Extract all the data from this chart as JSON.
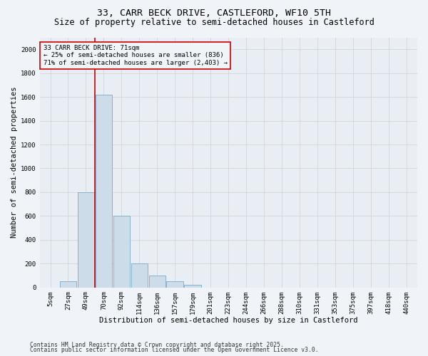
{
  "title_line1": "33, CARR BECK DRIVE, CASTLEFORD, WF10 5TH",
  "title_line2": "Size of property relative to semi-detached houses in Castleford",
  "xlabel": "Distribution of semi-detached houses by size in Castleford",
  "ylabel": "Number of semi-detached properties",
  "categories": [
    "5sqm",
    "27sqm",
    "49sqm",
    "70sqm",
    "92sqm",
    "114sqm",
    "136sqm",
    "157sqm",
    "179sqm",
    "201sqm",
    "223sqm",
    "244sqm",
    "266sqm",
    "288sqm",
    "310sqm",
    "331sqm",
    "353sqm",
    "375sqm",
    "397sqm",
    "418sqm",
    "440sqm"
  ],
  "bar_heights": [
    0,
    50,
    800,
    1620,
    600,
    200,
    100,
    55,
    20,
    0,
    0,
    0,
    0,
    0,
    0,
    0,
    0,
    0,
    0,
    0,
    0
  ],
  "bar_color": "#ccdce8",
  "bar_edgecolor": "#7aaac8",
  "red_line_color": "#cc0000",
  "red_line_bin": 3,
  "annotation_text": "33 CARR BECK DRIVE: 71sqm\n← 25% of semi-detached houses are smaller (836)\n71% of semi-detached houses are larger (2,403) →",
  "annotation_box_edgecolor": "#cc0000",
  "ylim": [
    0,
    2100
  ],
  "yticks": [
    0,
    200,
    400,
    600,
    800,
    1000,
    1200,
    1400,
    1600,
    1800,
    2000
  ],
  "grid_color": "#d0d0d0",
  "background_color": "#f0f4f8",
  "plot_bg_color": "#e8eef4",
  "footnote_line1": "Contains HM Land Registry data © Crown copyright and database right 2025.",
  "footnote_line2": "Contains public sector information licensed under the Open Government Licence v3.0.",
  "title_fontsize": 9.5,
  "subtitle_fontsize": 8.5,
  "axis_label_fontsize": 7.5,
  "tick_fontsize": 6.5,
  "annotation_fontsize": 6.5,
  "footnote_fontsize": 5.8
}
